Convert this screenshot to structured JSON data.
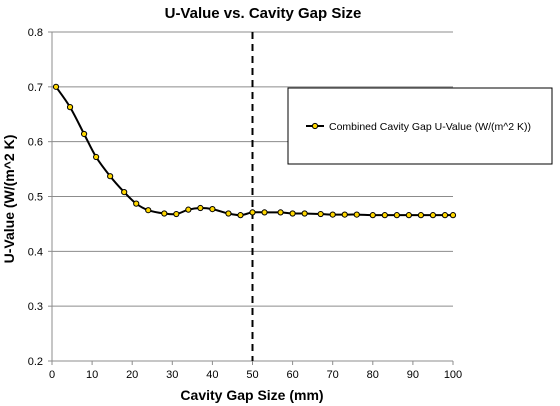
{
  "chart_data": {
    "type": "line",
    "title": "U-Value vs. Cavity Gap Size",
    "xlabel": "Cavity Gap Size (mm)",
    "ylabel": "U-Value (W/(m^2 K)",
    "xlim": [
      0,
      100
    ],
    "ylim": [
      0.2,
      0.8
    ],
    "x_ticks": [
      "0",
      "10",
      "20",
      "30",
      "40",
      "50",
      "60",
      "70",
      "80",
      "90",
      "100"
    ],
    "y_ticks": [
      "0.2",
      "0.3",
      "0.4",
      "0.5",
      "0.6",
      "0.7",
      "0.8"
    ],
    "grid": "horizontal",
    "legend_position": "right",
    "reference_line": {
      "x": 50,
      "style": "dashed"
    },
    "series": [
      {
        "name": "Combined Cavity Gap U-Value (W/(m^2 K))",
        "color": "#000000",
        "marker_color": "#FFD700",
        "x": [
          1,
          4.5,
          8,
          11,
          14.5,
          18,
          21,
          24,
          28,
          31,
          34,
          37,
          40,
          44,
          47,
          50,
          53,
          57,
          60,
          63,
          67,
          70,
          73,
          76,
          80,
          83,
          86,
          89,
          92,
          95,
          98,
          100
        ],
        "y": [
          0.7,
          0.663,
          0.614,
          0.572,
          0.537,
          0.508,
          0.487,
          0.475,
          0.469,
          0.468,
          0.476,
          0.479,
          0.477,
          0.469,
          0.466,
          0.471,
          0.471,
          0.471,
          0.469,
          0.469,
          0.468,
          0.467,
          0.467,
          0.467,
          0.466,
          0.466,
          0.466,
          0.466,
          0.466,
          0.466,
          0.466,
          0.466
        ]
      }
    ]
  }
}
